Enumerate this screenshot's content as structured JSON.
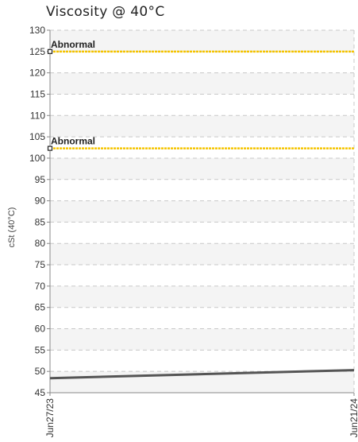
{
  "chart_data": {
    "type": "line",
    "title": "Viscosity @ 40°C",
    "ylabel": "cSt (40°C)",
    "xlabel": "",
    "ylim": [
      45,
      130
    ],
    "y_ticks": [
      45,
      50,
      55,
      60,
      65,
      70,
      75,
      80,
      85,
      90,
      95,
      100,
      105,
      110,
      115,
      120,
      125,
      130
    ],
    "x_ticks": [
      "Jun27/23",
      "Jun21/24"
    ],
    "series": [
      {
        "values": [
          {
            "x": "Jun27/23",
            "y": 48.4
          },
          {
            "x": "Jun21/24",
            "y": 50.3
          }
        ],
        "color": "#555555"
      }
    ],
    "thresholds": [
      {
        "label": "Abnormal",
        "value": 125,
        "color": "#f5c400"
      },
      {
        "label": "Abnormal",
        "value": 102.3,
        "color": "#f5c400"
      }
    ],
    "grid": true,
    "band_color": "#f4f4f4",
    "grid_color": "#c8c8c8"
  }
}
